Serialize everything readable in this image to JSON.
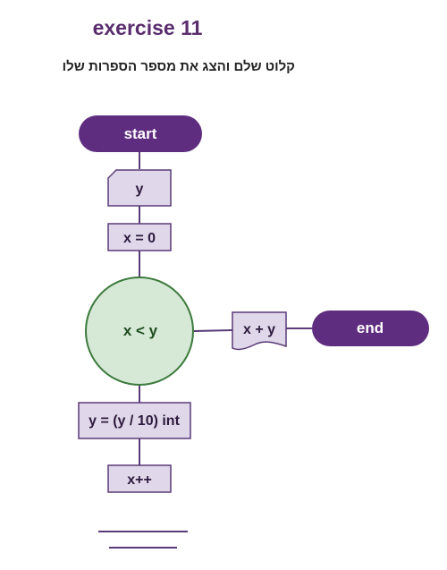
{
  "header": {
    "title": "exercise 11",
    "subtitle": "קלוט שלם והצג את מספר הספרות שלו"
  },
  "flowchart": {
    "nodes": {
      "start": "start",
      "input": "y",
      "init": "x = 0",
      "condition": "x < y",
      "output": "x + y",
      "end": "end",
      "divide": "y = (y / 10) int",
      "increment": "x++"
    }
  },
  "colors": {
    "terminal_fill": "#5f2d80",
    "process_fill": "#e0d8ea",
    "process_stroke": "#5a3a78",
    "decision_fill": "#d6e8d6",
    "decision_stroke": "#3c7a3c",
    "decision_text": "#1f4d1f",
    "text": "#2e1a3e"
  }
}
